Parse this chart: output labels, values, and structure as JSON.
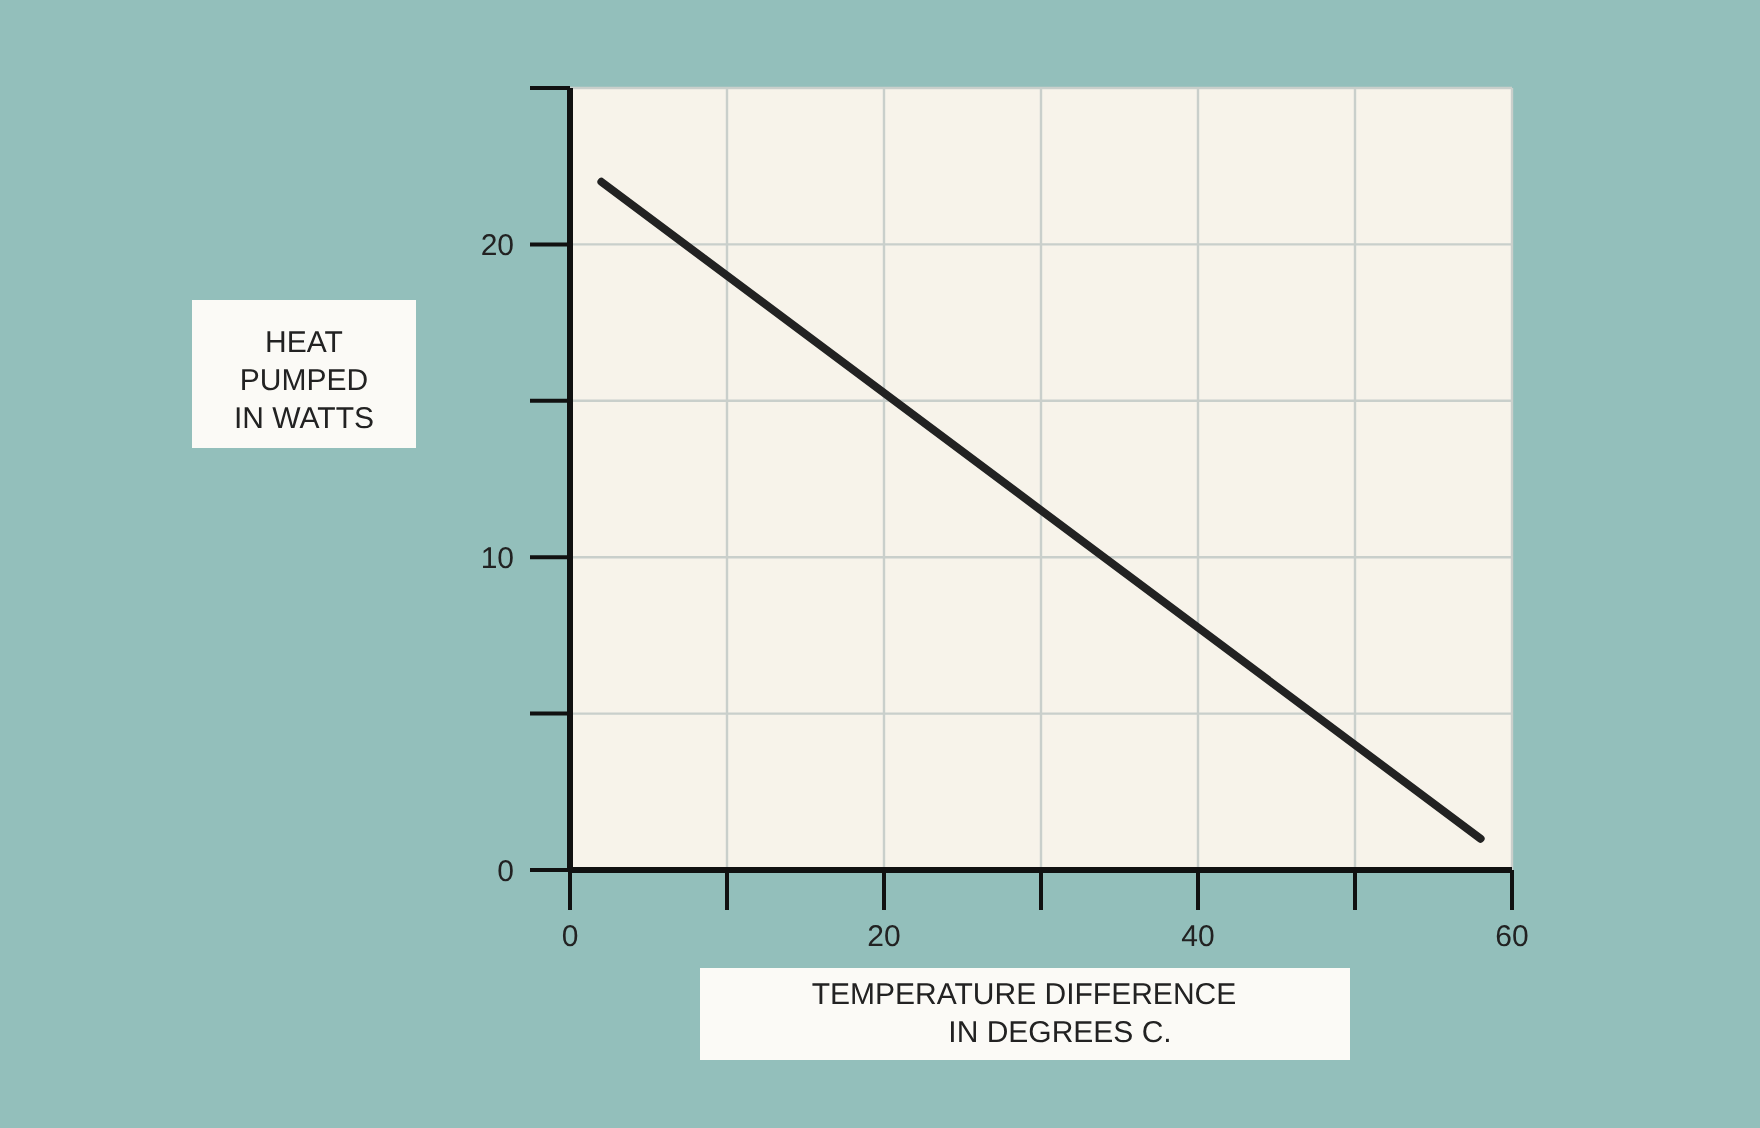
{
  "chart_data": {
    "type": "line",
    "xlabel": "TEMPERATURE DIFFERENCE\nIN DEGREES C.",
    "ylabel": "HEAT\nPUMPED\nIN WATTS",
    "x": [
      2,
      58
    ],
    "series": [
      {
        "color": "#222222",
        "values": [
          22,
          1
        ]
      }
    ],
    "xlim": [
      0,
      60
    ],
    "ylim": [
      0,
      25
    ],
    "xticks": [
      0,
      {
        "value": 10,
        "label": null
      },
      20,
      {
        "value": 30,
        "label": null
      },
      40,
      {
        "value": 50,
        "label": null
      },
      60
    ],
    "yticks": [
      0,
      {
        "value": 5,
        "label": null
      },
      10,
      {
        "value": 15,
        "label": null
      },
      20,
      {
        "value": 25,
        "label": null
      }
    ],
    "grid": true,
    "marker": "none",
    "line_style": "solid"
  }
}
